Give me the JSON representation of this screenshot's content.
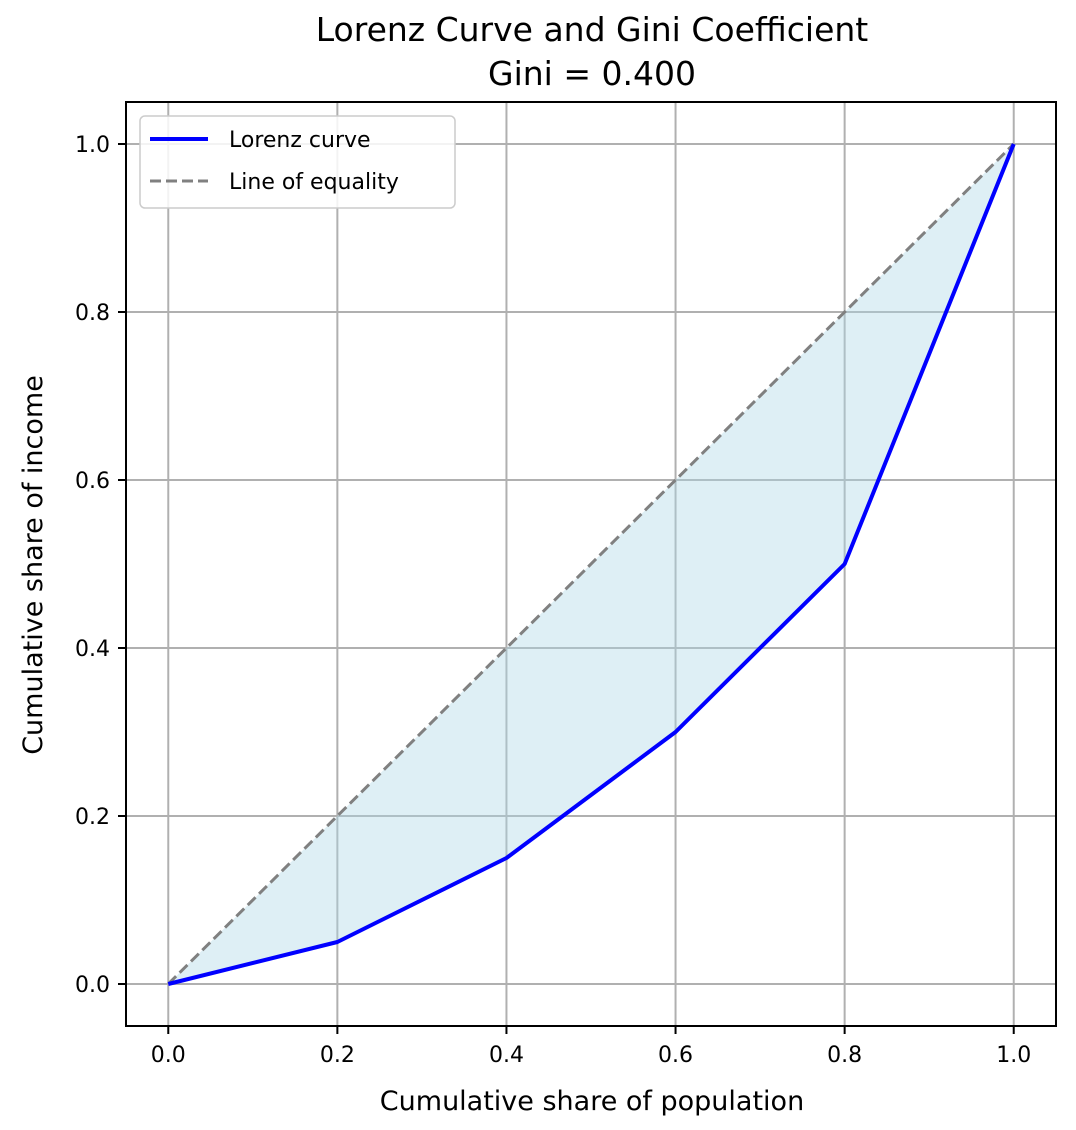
{
  "chart_data": {
    "type": "line",
    "title": "Lorenz Curve and Gini Coefficient",
    "subtitle": "Gini = 0.400",
    "xlabel": "Cumulative share of population",
    "ylabel": "Cumulative share of income",
    "xlim": [
      -0.05,
      1.05
    ],
    "ylim": [
      -0.05,
      1.05
    ],
    "grid": true,
    "legend_position": "top-left",
    "xticks": [
      0.0,
      0.2,
      0.4,
      0.6,
      0.8,
      1.0
    ],
    "yticks": [
      0.0,
      0.2,
      0.4,
      0.6,
      0.8,
      1.0
    ],
    "xtick_labels": [
      "0.0",
      "0.2",
      "0.4",
      "0.6",
      "0.8",
      "1.0"
    ],
    "ytick_labels": [
      "0.0",
      "0.2",
      "0.4",
      "0.6",
      "0.8",
      "1.0"
    ],
    "series": [
      {
        "name": "Lorenz curve",
        "style": "solid",
        "color": "#0000ff",
        "x": [
          0.0,
          0.2,
          0.4,
          0.6,
          0.8,
          1.0
        ],
        "y": [
          0.0,
          0.05,
          0.15,
          0.3,
          0.5,
          1.0
        ]
      },
      {
        "name": "Line of equality",
        "style": "dashed",
        "color": "#808080",
        "x": [
          0.0,
          1.0
        ],
        "y": [
          0.0,
          1.0
        ]
      }
    ],
    "fill_between": {
      "upper": "Line of equality",
      "lower": "Lorenz curve",
      "color": "#add8e6"
    },
    "gini": 0.4
  }
}
